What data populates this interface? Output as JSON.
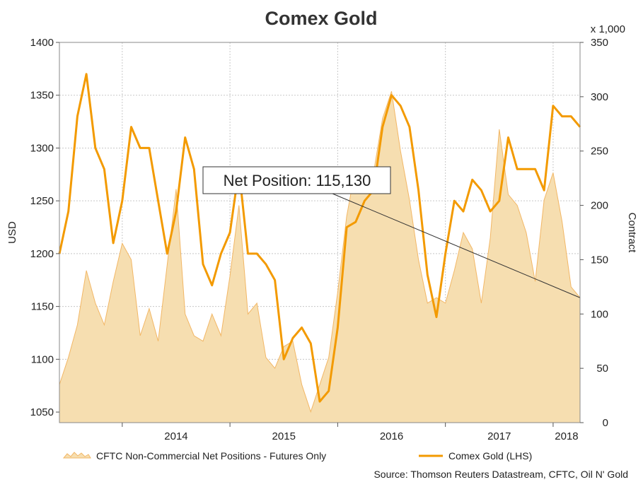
{
  "chart_data": {
    "type": "line",
    "title": "Comex Gold",
    "left_axis": {
      "label": "USD",
      "ylim": [
        1040,
        1400
      ],
      "ticks": [
        1050,
        1100,
        1150,
        1200,
        1250,
        1300,
        1350,
        1400
      ]
    },
    "right_axis": {
      "label": "Contract",
      "unit": "x 1,000",
      "ylim": [
        0,
        350
      ],
      "ticks": [
        0,
        50,
        100,
        150,
        200,
        250,
        300,
        350
      ]
    },
    "x_axis": {
      "range": [
        "2013-06",
        "2018-04"
      ],
      "ticks": [
        "2014",
        "2015",
        "2016",
        "2017",
        "2018"
      ]
    },
    "grid": true,
    "legend_position": "bottom",
    "series": [
      {
        "name": "CFTC Non-Commercial Net Positions - Futures Only",
        "type": "area",
        "axis": "right",
        "color": "#f6deb0",
        "edge_color": "#f2b766",
        "x": [
          "2013-06",
          "2013-07",
          "2013-08",
          "2013-09",
          "2013-10",
          "2013-11",
          "2013-12",
          "2014-01",
          "2014-02",
          "2014-03",
          "2014-04",
          "2014-05",
          "2014-06",
          "2014-07",
          "2014-08",
          "2014-09",
          "2014-10",
          "2014-11",
          "2014-12",
          "2015-01",
          "2015-02",
          "2015-03",
          "2015-04",
          "2015-05",
          "2015-06",
          "2015-07",
          "2015-08",
          "2015-09",
          "2015-10",
          "2015-11",
          "2015-12",
          "2016-01",
          "2016-02",
          "2016-03",
          "2016-04",
          "2016-05",
          "2016-06",
          "2016-07",
          "2016-08",
          "2016-09",
          "2016-10",
          "2016-11",
          "2016-12",
          "2017-01",
          "2017-02",
          "2017-03",
          "2017-04",
          "2017-05",
          "2017-06",
          "2017-07",
          "2017-08",
          "2017-09",
          "2017-10",
          "2017-11",
          "2017-12",
          "2018-01",
          "2018-02",
          "2018-03",
          "2018-04"
        ],
        "values": [
          35,
          60,
          90,
          140,
          110,
          90,
          130,
          165,
          150,
          80,
          105,
          75,
          145,
          215,
          100,
          80,
          75,
          100,
          80,
          135,
          200,
          100,
          110,
          60,
          50,
          70,
          75,
          35,
          10,
          35,
          60,
          120,
          190,
          235,
          225,
          230,
          280,
          305,
          250,
          205,
          150,
          110,
          115,
          110,
          140,
          175,
          160,
          110,
          170,
          270,
          210,
          200,
          175,
          130,
          205,
          230,
          185,
          125,
          115
        ],
        "annotation": {
          "text": "Net Position: 115,130",
          "points_to": "2018-04"
        }
      },
      {
        "name": "Comex Gold (LHS)",
        "type": "line",
        "axis": "left",
        "color": "#f39a00",
        "x": [
          "2013-06",
          "2013-07",
          "2013-08",
          "2013-09",
          "2013-10",
          "2013-11",
          "2013-12",
          "2014-01",
          "2014-02",
          "2014-03",
          "2014-04",
          "2014-05",
          "2014-06",
          "2014-07",
          "2014-08",
          "2014-09",
          "2014-10",
          "2014-11",
          "2014-12",
          "2015-01",
          "2015-02",
          "2015-03",
          "2015-04",
          "2015-05",
          "2015-06",
          "2015-07",
          "2015-08",
          "2015-09",
          "2015-10",
          "2015-11",
          "2015-12",
          "2016-01",
          "2016-02",
          "2016-03",
          "2016-04",
          "2016-05",
          "2016-06",
          "2016-07",
          "2016-08",
          "2016-09",
          "2016-10",
          "2016-11",
          "2016-12",
          "2017-01",
          "2017-02",
          "2017-03",
          "2017-04",
          "2017-05",
          "2017-06",
          "2017-07",
          "2017-08",
          "2017-09",
          "2017-10",
          "2017-11",
          "2017-12",
          "2018-01",
          "2018-02",
          "2018-03",
          "2018-04"
        ],
        "values": [
          1200,
          1240,
          1330,
          1370,
          1300,
          1280,
          1210,
          1250,
          1320,
          1300,
          1300,
          1250,
          1200,
          1240,
          1310,
          1280,
          1190,
          1170,
          1200,
          1220,
          1280,
          1200,
          1200,
          1190,
          1175,
          1100,
          1120,
          1130,
          1115,
          1060,
          1070,
          1130,
          1225,
          1230,
          1250,
          1260,
          1320,
          1350,
          1340,
          1320,
          1260,
          1180,
          1140,
          1200,
          1250,
          1240,
          1270,
          1260,
          1240,
          1250,
          1310,
          1280,
          1280,
          1280,
          1260,
          1340,
          1330,
          1330,
          1320
        ]
      }
    ]
  },
  "source": "Source: Thomson Reuters Datastream, CFTC, Oil N' Gold"
}
